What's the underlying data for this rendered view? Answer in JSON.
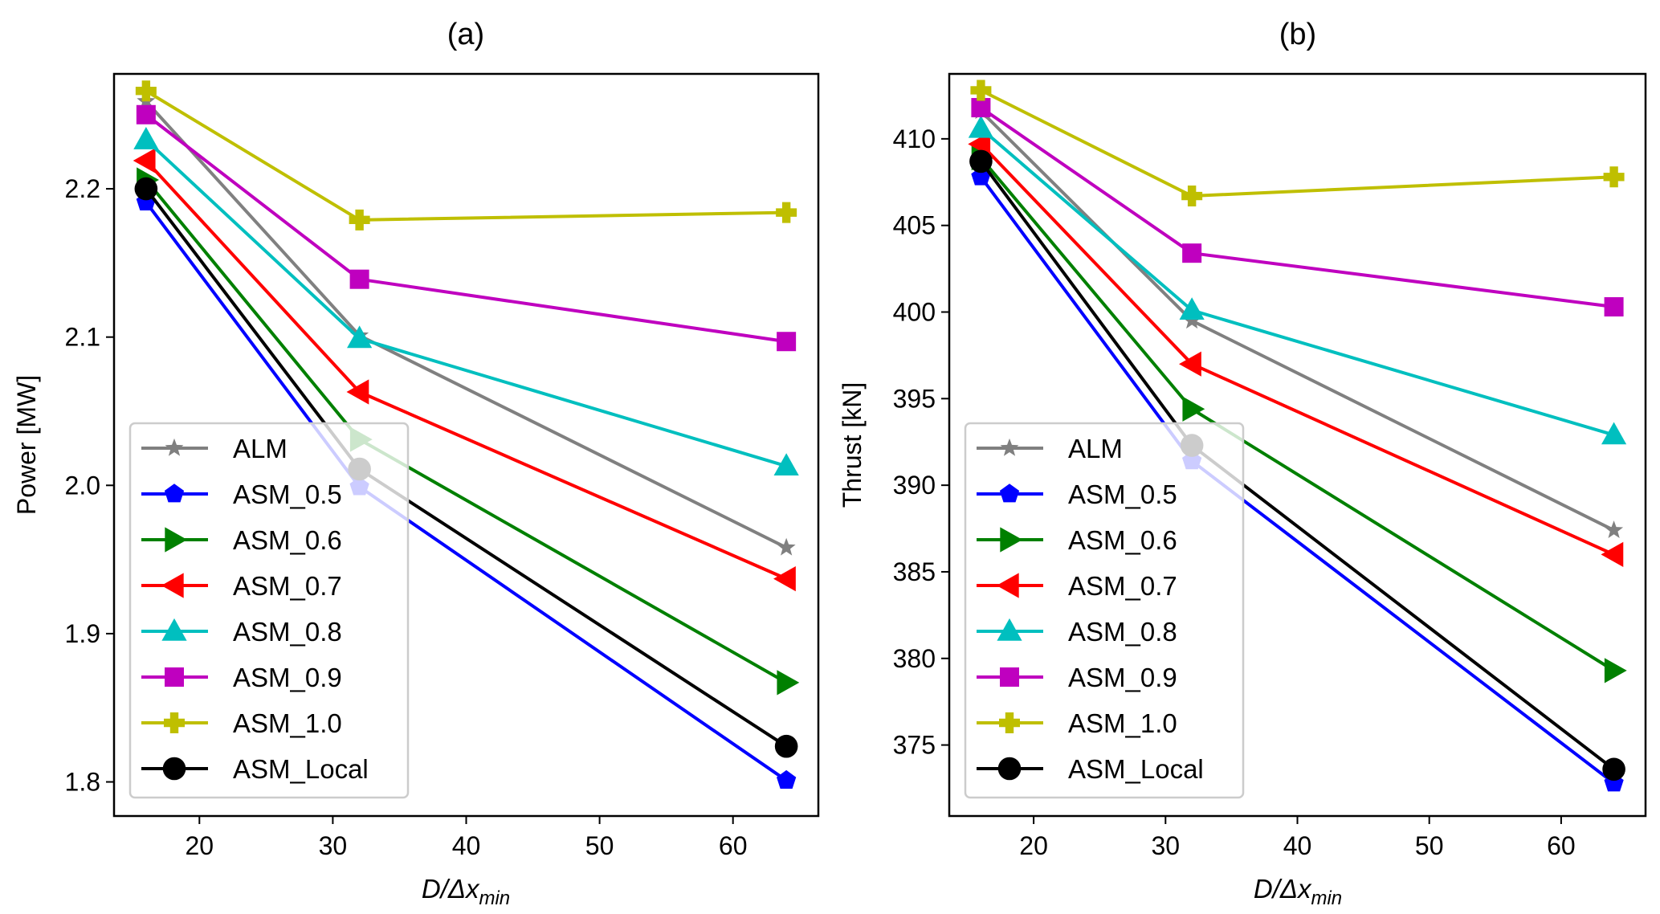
{
  "chart_data": [
    {
      "type": "line",
      "title": "(a)",
      "xlabel": "D/Δx_min",
      "xlabel_parts": {
        "main": "D/Δx",
        "sub": "min"
      },
      "ylabel": "Power [MW]",
      "xlim": [
        13.6,
        66.4
      ],
      "ylim": [
        1.777,
        2.2775
      ],
      "xticks": [
        20,
        30,
        40,
        50,
        60
      ],
      "xtick_labels": [
        "20",
        "30",
        "40",
        "50",
        "60"
      ],
      "yticks": [
        1.8,
        1.9,
        2.0,
        2.1,
        2.2
      ],
      "ytick_labels": [
        "1.8",
        "1.9",
        "2.0",
        "2.1",
        "2.2"
      ],
      "grid": false,
      "legend": "lower-left",
      "x": [
        16,
        32,
        64
      ],
      "series": [
        {
          "name": "ALM",
          "color": "#808080",
          "marker": "star",
          "values": [
            2.259,
            2.101,
            1.958
          ]
        },
        {
          "name": "ASM_0.5",
          "color": "#0000ff",
          "marker": "pentagon",
          "values": [
            2.191,
            1.999,
            1.801
          ]
        },
        {
          "name": "ASM_0.6",
          "color": "#008000",
          "marker": "triangle-right",
          "values": [
            2.206,
            2.031,
            1.867
          ]
        },
        {
          "name": "ASM_0.7",
          "color": "#ff0000",
          "marker": "triangle-left",
          "values": [
            2.219,
            2.063,
            1.937
          ]
        },
        {
          "name": "ASM_0.8",
          "color": "#00bfbf",
          "marker": "triangle-up",
          "values": [
            2.233,
            2.099,
            2.013
          ]
        },
        {
          "name": "ASM_0.9",
          "color": "#bf00bf",
          "marker": "square",
          "values": [
            2.25,
            2.139,
            2.097
          ]
        },
        {
          "name": "ASM_1.0",
          "color": "#bfbf00",
          "marker": "plus-filled",
          "values": [
            2.266,
            2.179,
            2.184
          ]
        },
        {
          "name": "ASM_Local",
          "color": "#000000",
          "marker": "circle",
          "values": [
            2.2,
            2.011,
            1.824
          ]
        }
      ]
    },
    {
      "type": "line",
      "title": "(b)",
      "xlabel": "D/Δx_min",
      "xlabel_parts": {
        "main": "D/Δx",
        "sub": "min"
      },
      "ylabel": "Thrust [kN]",
      "xlim": [
        13.6,
        66.4
      ],
      "ylim": [
        370.9,
        413.75
      ],
      "xticks": [
        20,
        30,
        40,
        50,
        60
      ],
      "xtick_labels": [
        "20",
        "30",
        "40",
        "50",
        "60"
      ],
      "yticks": [
        375,
        380,
        385,
        390,
        395,
        400,
        405,
        410
      ],
      "ytick_labels": [
        "375",
        "380",
        "385",
        "390",
        "395",
        "400",
        "405",
        "410"
      ],
      "grid": false,
      "legend": "lower-left",
      "x": [
        16,
        32,
        64
      ],
      "series": [
        {
          "name": "ALM",
          "color": "#808080",
          "marker": "star",
          "values": [
            411.6,
            399.5,
            387.4
          ]
        },
        {
          "name": "ASM_0.5",
          "color": "#0000ff",
          "marker": "pentagon",
          "values": [
            407.8,
            391.4,
            372.8
          ]
        },
        {
          "name": "ASM_0.6",
          "color": "#008000",
          "marker": "triangle-right",
          "values": [
            408.9,
            394.4,
            379.3
          ]
        },
        {
          "name": "ASM_0.7",
          "color": "#ff0000",
          "marker": "triangle-left",
          "values": [
            409.7,
            397.0,
            386.0
          ]
        },
        {
          "name": "ASM_0.8",
          "color": "#00bfbf",
          "marker": "triangle-up",
          "values": [
            410.6,
            400.1,
            392.9
          ]
        },
        {
          "name": "ASM_0.9",
          "color": "#bf00bf",
          "marker": "square",
          "values": [
            411.8,
            403.4,
            400.3
          ]
        },
        {
          "name": "ASM_1.0",
          "color": "#bfbf00",
          "marker": "plus-filled",
          "values": [
            412.8,
            406.7,
            407.8
          ]
        },
        {
          "name": "ASM_Local",
          "color": "#000000",
          "marker": "circle",
          "values": [
            408.7,
            392.3,
            373.6
          ]
        }
      ]
    }
  ]
}
